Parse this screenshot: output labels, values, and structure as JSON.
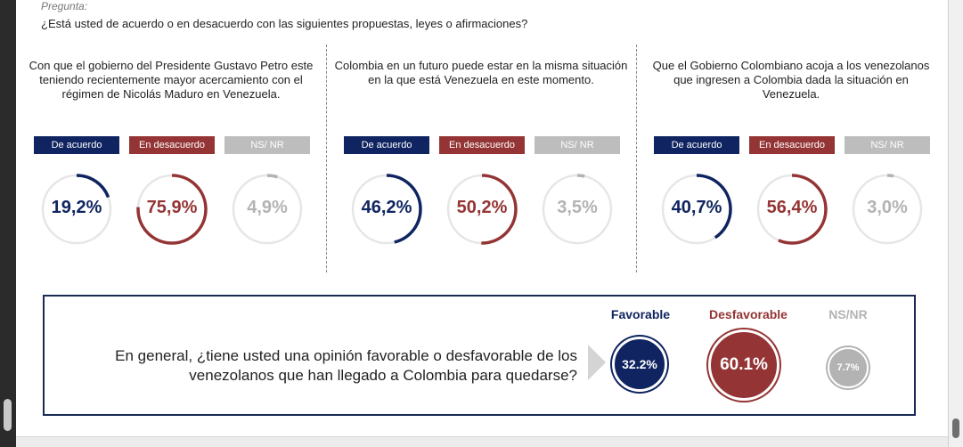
{
  "header": {
    "pregunta_label": "Pregunta:",
    "pregunta_text": "¿Está usted de acuerdo o en desacuerdo con las siguientes propuestas, leyes o afirmaciones?"
  },
  "colors": {
    "blue": "#0f2460",
    "red": "#943434",
    "gray": "#b3b3b3",
    "track": "#e6e6e6"
  },
  "chart_data": [
    {
      "type": "pie",
      "title": "Con que el gobierno del Presidente Gustavo Petro este teniendo recientemente mayor acercamiento con el régimen de Nicolás Maduro en Venezuela.",
      "categories": [
        "De acuerdo",
        "En desacuerdo",
        "NS/ NR"
      ],
      "values": [
        19.2,
        75.9,
        4.9
      ],
      "labels": [
        "19,2%",
        "75,9%",
        "4,9%"
      ]
    },
    {
      "type": "pie",
      "title": "Colombia en un futuro puede estar en la misma situación en la que está Venezuela en este momento.",
      "categories": [
        "De acuerdo",
        "En desacuerdo",
        "NS/ NR"
      ],
      "values": [
        46.2,
        50.2,
        3.5
      ],
      "labels": [
        "46,2%",
        "50,2%",
        "3,5%"
      ]
    },
    {
      "type": "pie",
      "title": "Que el Gobierno Colombiano acoja a los venezolanos que ingresen a Colombia dada la situación en Venezuela.",
      "categories": [
        "De acuerdo",
        "En desacuerdo",
        "NS/ NR"
      ],
      "values": [
        40.7,
        56.4,
        3.0
      ],
      "labels": [
        "40,7%",
        "56,4%",
        "3,0%"
      ]
    },
    {
      "type": "bubble",
      "title": "En general, ¿tiene usted una opinión favorable o desfavorable de los venezolanos que han llegado a Colombia para quedarse?",
      "categories": [
        "Favorable",
        "Desfavorable",
        "NS/NR"
      ],
      "values": [
        32.2,
        60.1,
        7.7
      ],
      "labels": [
        "32.2%",
        "60.1%",
        "7.7%"
      ]
    }
  ]
}
